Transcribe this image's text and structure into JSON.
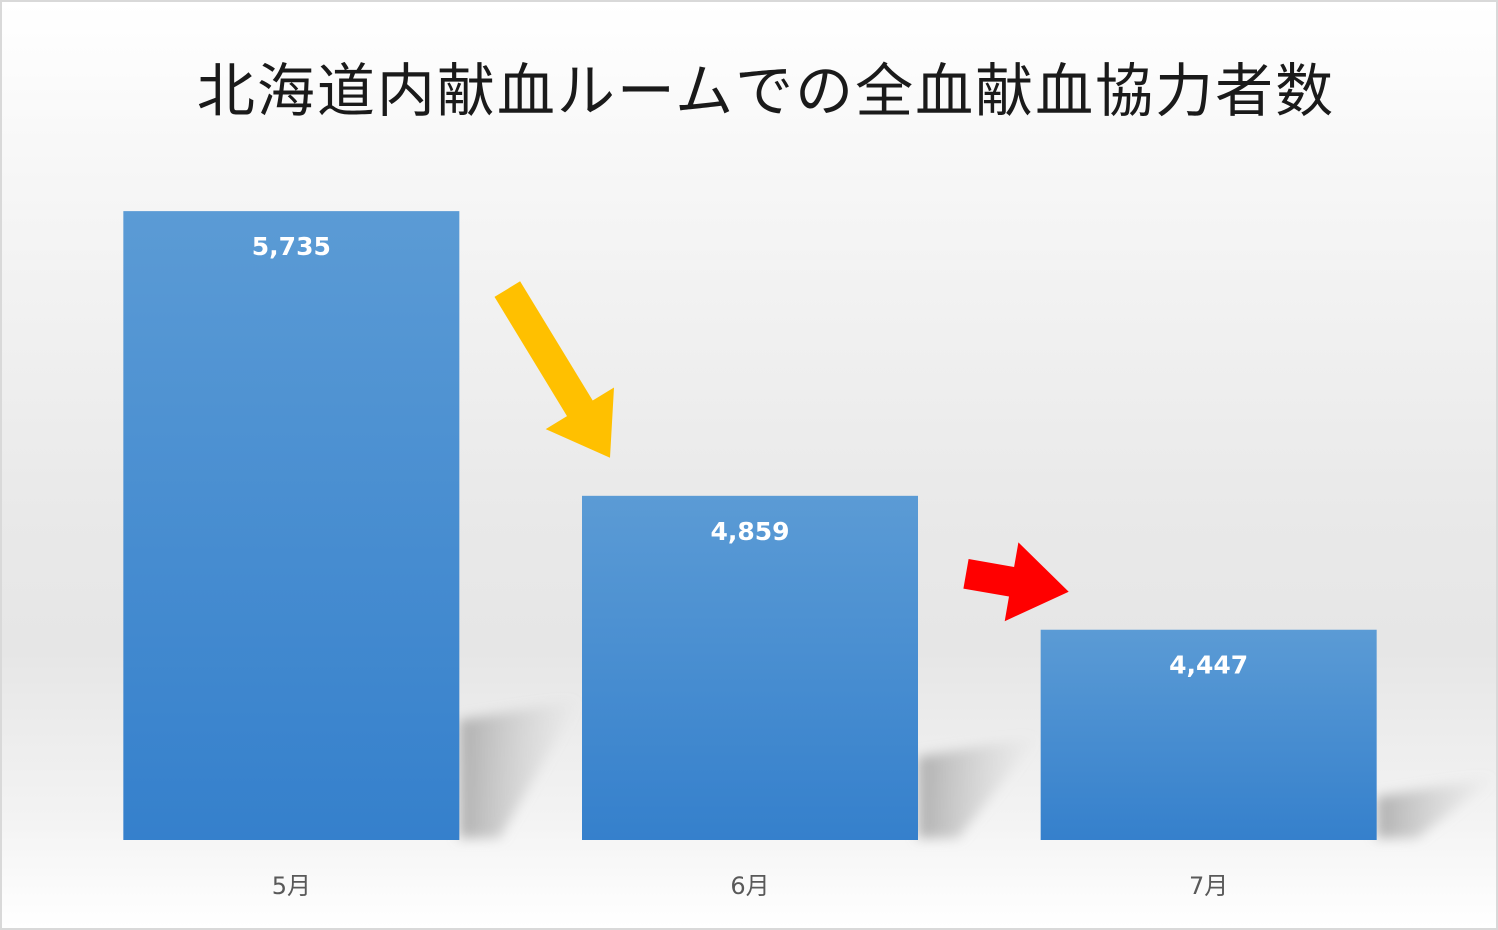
{
  "chart_data": {
    "type": "bar",
    "title": "北海道内献血ルームでの全血献血協力者数",
    "categories": [
      "5月",
      "6月",
      "7月"
    ],
    "values": [
      5735,
      4859,
      4447
    ],
    "value_labels": [
      "5,735",
      "4,859",
      "4,447"
    ],
    "xlabel": "",
    "ylabel": "",
    "ylim": [
      3800,
      5800
    ],
    "grid": false,
    "legend": "none",
    "annotations": [
      {
        "type": "arrow",
        "from_category": "5月",
        "to_category": "6月",
        "color": "#FFC000"
      },
      {
        "type": "arrow",
        "from_category": "6月",
        "to_category": "7月",
        "color": "#FF0000"
      }
    ]
  },
  "colors": {
    "bar_top": "#5B9BD5",
    "bar_bottom": "#3580CC",
    "data_label": "#FFFFFF",
    "tick_label": "#595959",
    "title": "#1A1A1A"
  }
}
